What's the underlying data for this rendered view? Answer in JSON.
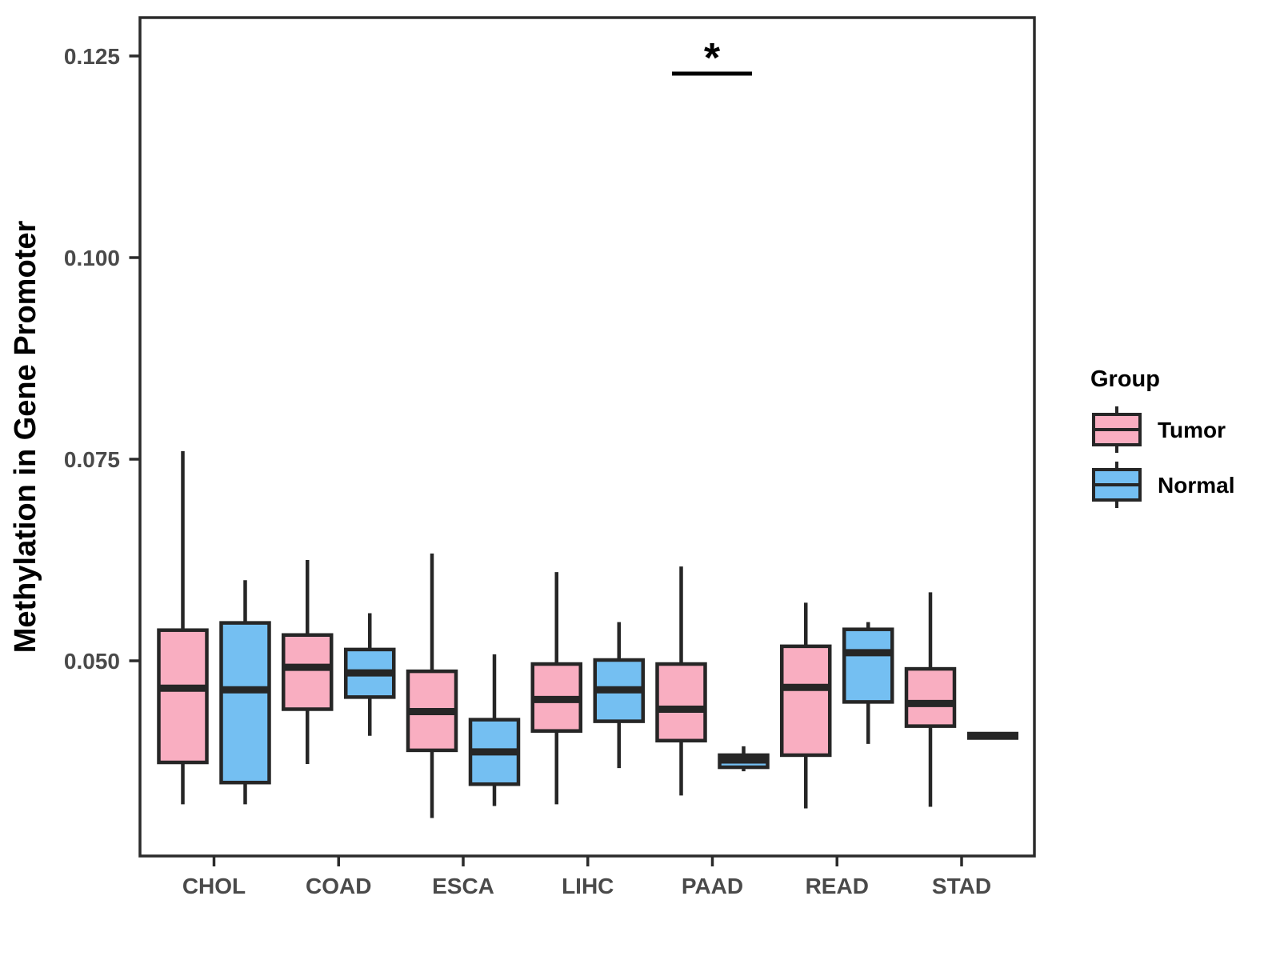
{
  "figure": {
    "background": "#ffffff",
    "panel_border_color": "#2b2b2b",
    "box_stroke_color": "#262626",
    "tick_label_color": "#4a4a4a",
    "y_axis": {
      "title": "Methylation in Gene Promoter",
      "tick_labels": [
        "0.125",
        "0.100",
        "0.075",
        "0.050"
      ],
      "tick_values": [
        0.125,
        0.1,
        0.075,
        0.05
      ]
    },
    "x_axis": {
      "title": "",
      "tick_labels": [
        "CHOL",
        "COAD",
        "ESCA",
        "LIHC",
        "PAAD",
        "READ",
        "STAD"
      ]
    },
    "legend": {
      "title": "Group",
      "position": "right",
      "items": [
        {
          "label": "Tumor",
          "color": "#F9AEC1"
        },
        {
          "label": "Normal",
          "color": "#74BFF2"
        }
      ]
    }
  },
  "chart_data": {
    "type": "boxplot",
    "title": "",
    "xlabel": "",
    "ylabel": "Methylation in Gene Promoter",
    "categories": [
      "CHOL",
      "COAD",
      "ESCA",
      "LIHC",
      "PAAD",
      "READ",
      "STAD"
    ],
    "y_ticks": [
      0.05,
      0.075,
      0.1,
      0.125
    ],
    "ylim": [
      0.0257,
      0.1298
    ],
    "grid": false,
    "legend_position": "right",
    "series": [
      {
        "name": "Tumor",
        "color": "#F9AEC1",
        "boxes": [
          {
            "category": "CHOL",
            "min": 0.0322,
            "q1": 0.0374,
            "median": 0.0466,
            "q3": 0.0538,
            "max": 0.076
          },
          {
            "category": "COAD",
            "min": 0.0372,
            "q1": 0.044,
            "median": 0.0492,
            "q3": 0.0532,
            "max": 0.0625
          },
          {
            "category": "ESCA",
            "min": 0.0305,
            "q1": 0.0389,
            "median": 0.0437,
            "q3": 0.0487,
            "max": 0.0633
          },
          {
            "category": "LIHC",
            "min": 0.0322,
            "q1": 0.0413,
            "median": 0.0452,
            "q3": 0.0496,
            "max": 0.061
          },
          {
            "category": "PAAD",
            "min": 0.0333,
            "q1": 0.0401,
            "median": 0.044,
            "q3": 0.0496,
            "max": 0.0617
          },
          {
            "category": "READ",
            "min": 0.0317,
            "q1": 0.0383,
            "median": 0.0467,
            "q3": 0.0518,
            "max": 0.0572
          },
          {
            "category": "STAD",
            "min": 0.0319,
            "q1": 0.0419,
            "median": 0.0447,
            "q3": 0.049,
            "max": 0.0585
          }
        ]
      },
      {
        "name": "Normal",
        "color": "#74BFF2",
        "boxes": [
          {
            "category": "CHOL",
            "min": 0.0322,
            "q1": 0.0349,
            "median": 0.0464,
            "q3": 0.0547,
            "max": 0.06
          },
          {
            "category": "COAD",
            "min": 0.0407,
            "q1": 0.0455,
            "median": 0.0485,
            "q3": 0.0514,
            "max": 0.0559
          },
          {
            "category": "ESCA",
            "min": 0.032,
            "q1": 0.0347,
            "median": 0.0387,
            "q3": 0.0427,
            "max": 0.0508
          },
          {
            "category": "LIHC",
            "min": 0.0367,
            "q1": 0.0425,
            "median": 0.0464,
            "q3": 0.0501,
            "max": 0.0548
          },
          {
            "category": "PAAD",
            "min": 0.0363,
            "q1": 0.0368,
            "median": 0.0377,
            "q3": 0.0383,
            "max": 0.0394
          },
          {
            "category": "READ",
            "min": 0.0397,
            "q1": 0.0449,
            "median": 0.051,
            "q3": 0.0539,
            "max": 0.0548
          },
          {
            "category": "STAD",
            "min": 0.0407,
            "q1": 0.0407,
            "median": 0.0407,
            "q3": 0.0407,
            "max": 0.0407
          }
        ]
      }
    ],
    "annotations": [
      {
        "type": "significance",
        "label": "*",
        "category": "PAAD",
        "between": [
          "Tumor",
          "Normal"
        ]
      }
    ]
  }
}
